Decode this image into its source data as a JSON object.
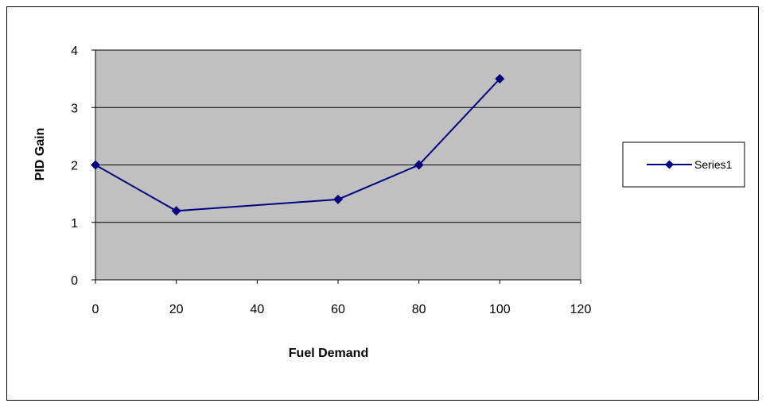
{
  "chart_data": {
    "type": "line",
    "title": "",
    "xlabel": "Fuel Demand",
    "ylabel": "PID Gain",
    "xlim": [
      0,
      120
    ],
    "ylim": [
      0,
      4
    ],
    "xticks": [
      0,
      20,
      40,
      60,
      80,
      100,
      120
    ],
    "yticks": [
      0,
      1,
      2,
      3,
      4
    ],
    "xtick_labels": [
      "0",
      "20",
      "40",
      "60",
      "80",
      "100",
      "120"
    ],
    "ytick_labels": [
      "0",
      "1",
      "2",
      "3",
      "4"
    ],
    "grid": "horizontal",
    "legend_position": "right",
    "plot_background": "#c0c0c0",
    "series": [
      {
        "name": "Series1",
        "color": "#000080",
        "marker": "diamond",
        "x": [
          0,
          20,
          60,
          80,
          100
        ],
        "y": [
          2,
          1.2,
          1.4,
          2,
          3.5
        ]
      }
    ]
  }
}
